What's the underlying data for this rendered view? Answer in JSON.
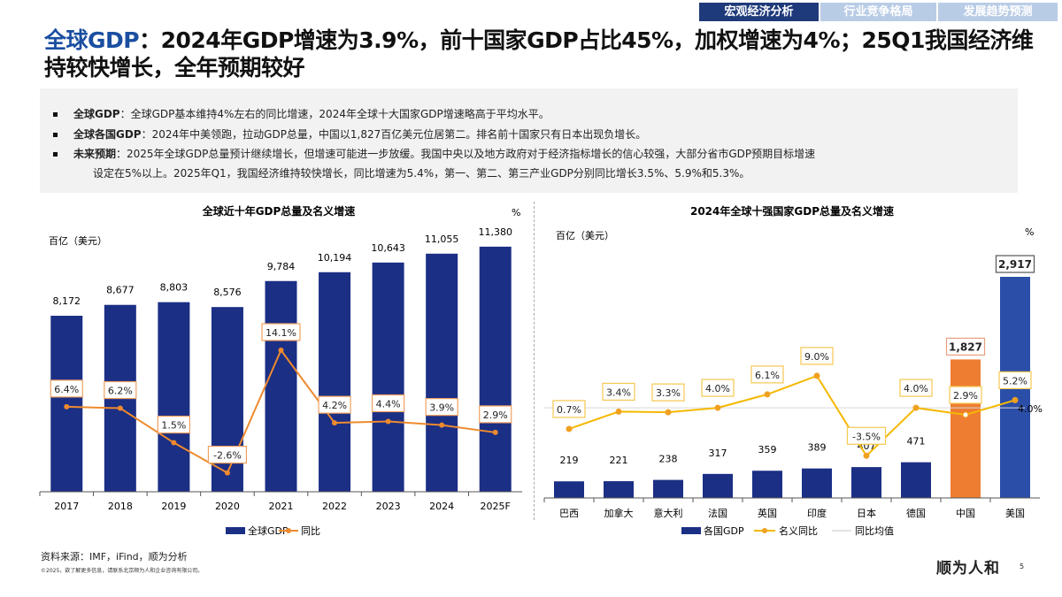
{
  "nav": {
    "tabs": [
      {
        "label": "宏观经济分析",
        "active": true
      },
      {
        "label": "行业竞争格局",
        "active": false
      },
      {
        "label": "发展趋势预测",
        "active": false
      }
    ],
    "active_color": "#1f3a7a",
    "inactive_color": "#b9cce6"
  },
  "header": {
    "title_highlight": "全球GDP",
    "title_rest": "：2024年GDP增速为3.9%，前十国家GDP占比45%，加权增速为4%；25Q1我国经济维持较快增长，全年预期较好"
  },
  "summary": {
    "bullets": [
      {
        "label": "全球GDP",
        "text": "：全球GDP基本维持4%左右的同比增速，2024年全球十大国家GDP增速略高于平均水平。"
      },
      {
        "label": "全球各国GDP",
        "text": "：2024年中美领跑，拉动GDP总量，中国以1,827百亿美元位居第二。排名前十国家只有日本出现负增长。"
      },
      {
        "label": "未来预期",
        "text": "：2025年全球GDP总量预计继续增长，但增速可能进一步放缓。我国中央以及地方政府对于经济指标增长的信心较强，大部分省市GDP预期目标增速",
        "cont": "设定在5%以上。2025年Q1，我国经济维持较快增长，同比增速为5.4%，第一、第二、第三产业GDP分别同比增长3.5%、5.9%和5.3%。"
      }
    ]
  },
  "chart_data": [
    {
      "type": "bar+line",
      "title": "全球近十年GDP总量及名义增速",
      "ylabel_left": "百亿（美元）",
      "ylabel_right": "%",
      "categories": [
        "2017",
        "2018",
        "2019",
        "2020",
        "2021",
        "2022",
        "2023",
        "2024",
        "2025F"
      ],
      "series": [
        {
          "name": "全球GDP",
          "type": "bar",
          "color": "#1b2f85",
          "values": [
            8172,
            8677,
            8803,
            8576,
            9784,
            10194,
            10643,
            11055,
            11380
          ],
          "labels": [
            "8,172",
            "8,677",
            "8,803",
            "8,576",
            "9,784",
            "10,194",
            "10,643",
            "11,055",
            "11,380"
          ]
        },
        {
          "name": "同比",
          "type": "line",
          "color": "#ee8a2e",
          "values": [
            6.4,
            6.2,
            1.5,
            -2.6,
            14.1,
            4.2,
            4.4,
            3.9,
            2.9
          ],
          "labels": [
            "6.4%",
            "6.2%",
            "1.5%",
            "-2.6%",
            "14.1%",
            "4.2%",
            "4.4%",
            "3.9%",
            "2.9%"
          ]
        }
      ],
      "legend": "bottom"
    },
    {
      "type": "bar+line",
      "title": "2024年全球十强国家GDP总量及名义增速",
      "ylabel_left": "百亿（美元）",
      "ylabel_right": "%",
      "categories": [
        "巴西",
        "加拿大",
        "意大利",
        "法国",
        "英国",
        "印度",
        "日本",
        "德国",
        "中国",
        "美国"
      ],
      "series": [
        {
          "name": "各国GDP",
          "type": "bar",
          "color": "#1b2f85",
          "highlight_colors": {
            "中国": "#ee7d31",
            "美国": "#2b4ea8"
          },
          "values": [
            219,
            221,
            238,
            317,
            359,
            389,
            407,
            471,
            1827,
            2917
          ],
          "labels": [
            "219",
            "221",
            "238",
            "317",
            "359",
            "389",
            "407",
            "471",
            "1,827",
            "2,917"
          ]
        },
        {
          "name": "名义同比",
          "type": "line",
          "color": "#f5b800",
          "values": [
            0.7,
            3.4,
            3.3,
            4.0,
            6.1,
            9.0,
            -3.5,
            4.0,
            2.9,
            5.2
          ],
          "labels": [
            "0.7%",
            "3.4%",
            "3.3%",
            "4.0%",
            "6.1%",
            "9.0%",
            "-3.5%",
            "4.0%",
            "2.9%",
            "5.2%"
          ]
        },
        {
          "name": "同比均值",
          "type": "reference-line",
          "color": "#d9d9d9",
          "value": 4.0,
          "label": "4.0%"
        }
      ],
      "legend": "bottom"
    }
  ],
  "footer": {
    "source": "资料来源：IMF，iFind，顺为分析",
    "copyright": "©2025，欲了解更多信息，请联系北京顺为人和企业咨询有限公司。",
    "logo": "顺为人和",
    "page": "5"
  }
}
